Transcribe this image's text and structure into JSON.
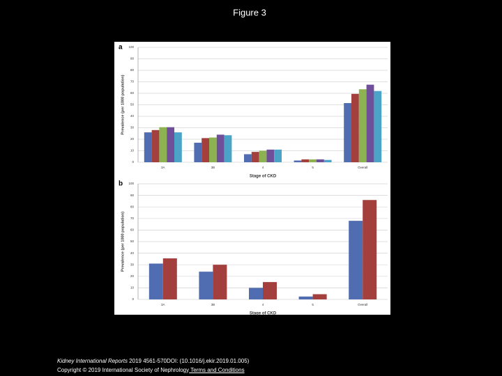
{
  "title": "Figure 3",
  "chart_data": [
    {
      "type": "bar",
      "label": "a",
      "y_label": "Prevalence (per 1000 population)",
      "x_label": "Stage of CKD",
      "categories": [
        "3A",
        "3B",
        "4",
        "5",
        "Overall"
      ],
      "series": [
        {
          "color": "#4f6db0",
          "values": [
            26,
            17,
            7,
            1.5,
            51.5
          ]
        },
        {
          "color": "#a3403d",
          "values": [
            28,
            21,
            9,
            2.5,
            59.5
          ]
        },
        {
          "color": "#8db252",
          "values": [
            30.5,
            21.5,
            10,
            2.5,
            63.5
          ]
        },
        {
          "color": "#6f4f99",
          "values": [
            30.5,
            24,
            11,
            2.5,
            67.5
          ]
        },
        {
          "color": "#4ba3c8",
          "values": [
            26,
            23.5,
            11,
            2,
            62
          ]
        }
      ],
      "ylim": [
        0,
        100
      ],
      "yticks": [
        0,
        10,
        20,
        30,
        40,
        50,
        60,
        70,
        80,
        90,
        100
      ],
      "grid": true
    },
    {
      "type": "bar",
      "label": "b",
      "y_label": "Prevalence (per 1000 population)",
      "x_label": "Stage of CKD",
      "categories": [
        "3A",
        "3B",
        "4",
        "5",
        "Overall"
      ],
      "series": [
        {
          "color": "#4f6db0",
          "values": [
            31,
            24,
            10,
            2.5,
            68
          ]
        },
        {
          "color": "#a3403d",
          "values": [
            35.5,
            30,
            15,
            4.5,
            86
          ]
        }
      ],
      "ylim": [
        0,
        100
      ],
      "yticks": [
        0,
        10,
        20,
        30,
        40,
        50,
        60,
        70,
        80,
        90,
        100
      ],
      "grid": true
    }
  ],
  "footer": {
    "journal": "Kidney International Reports",
    "citation": " 2019 4561-570DOI: (10.1016/j.ekir.2019.01.005)",
    "copyright": "Copyright © 2019 International Society of Nephrology",
    "link": " Terms and Conditions"
  }
}
